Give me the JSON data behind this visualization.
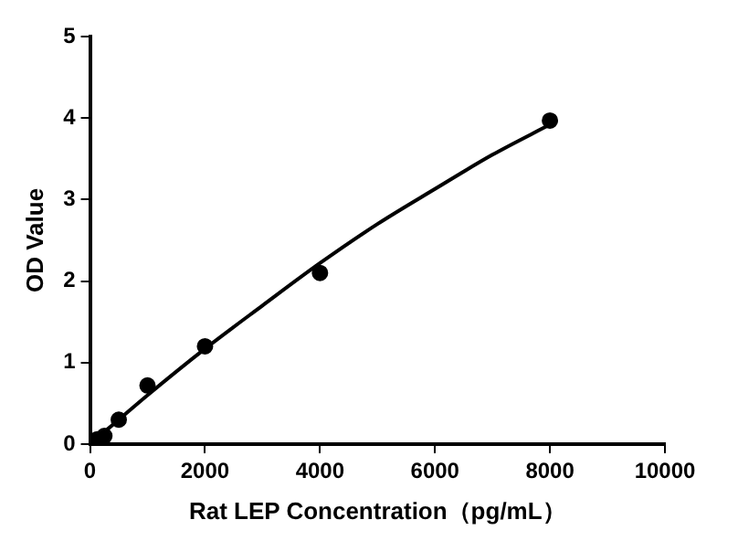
{
  "chart_data": {
    "type": "scatter",
    "xlabel": "Rat LEP Concentration（pg/mL）",
    "ylabel": "OD Value",
    "xlim": [
      0,
      10000
    ],
    "xticks": [
      0,
      2000,
      4000,
      6000,
      8000,
      10000
    ],
    "ylim": [
      0,
      5
    ],
    "yticks": [
      0,
      1,
      2,
      3,
      4,
      5
    ],
    "grid": false,
    "legend": false,
    "marker": "circle",
    "series": [
      {
        "color": "#000000",
        "x": [
          125,
          250,
          500,
          1000,
          2000,
          4000,
          8000
        ],
        "values": [
          0.06,
          0.1,
          0.3,
          0.72,
          1.2,
          2.1,
          3.97
        ]
      },
      {
        "type": "line",
        "color": "#000000",
        "marker": "none",
        "x": [
          0,
          500,
          1000,
          2000,
          3000,
          4000,
          5000,
          6000,
          7000,
          8000
        ],
        "values": [
          0,
          0.3,
          0.6,
          1.17,
          1.7,
          2.22,
          2.7,
          3.13,
          3.55,
          3.92
        ]
      }
    ]
  }
}
